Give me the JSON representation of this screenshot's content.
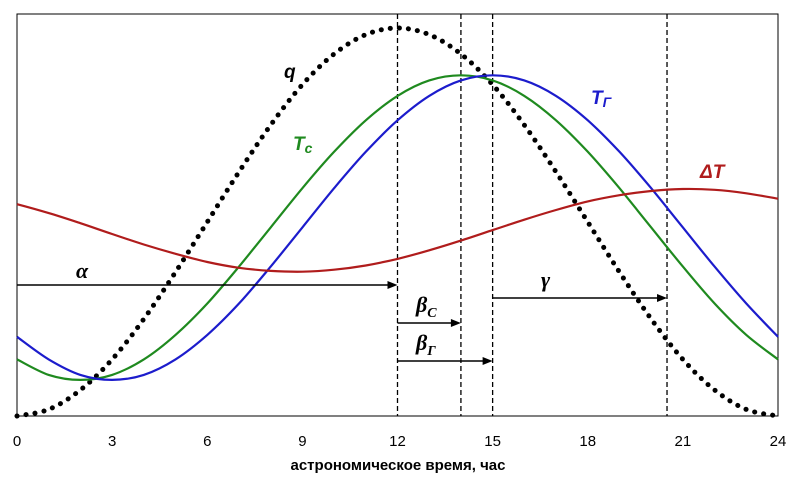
{
  "chart_data": {
    "type": "line",
    "title": "",
    "xlabel": "астрономическое время, час",
    "ylabel": "",
    "xlim": [
      0,
      24
    ],
    "x_ticks": [
      0,
      3,
      6,
      9,
      12,
      15,
      18,
      21,
      24
    ],
    "x_tick_labels": [
      "0",
      "3",
      "6",
      "9",
      "12",
      "15",
      "18",
      "21",
      "24"
    ],
    "y_units": "relative",
    "ylim": [
      0,
      1
    ],
    "grid": false,
    "series": [
      {
        "name": "q",
        "label_text": "q",
        "style": "dotted",
        "color": "#000000",
        "x": [
          0,
          1,
          2,
          3,
          4,
          5,
          6,
          7,
          8,
          9,
          10,
          11,
          12,
          13,
          14,
          15,
          16,
          17,
          18,
          19,
          20,
          21,
          22,
          23,
          24
        ],
        "y": [
          0.0,
          0.017,
          0.067,
          0.146,
          0.25,
          0.371,
          0.5,
          0.629,
          0.75,
          0.854,
          0.933,
          0.983,
          1.0,
          0.983,
          0.933,
          0.854,
          0.75,
          0.629,
          0.5,
          0.371,
          0.25,
          0.146,
          0.067,
          0.017,
          0.0
        ]
      },
      {
        "name": "Tс",
        "label_main": "T",
        "label_sub": "с",
        "style": "solid",
        "color": "#1f8a1f",
        "x": [
          0,
          1,
          2,
          3,
          4,
          5,
          6,
          7,
          8,
          9,
          10,
          11,
          12,
          13,
          14,
          15,
          16,
          17,
          18,
          19,
          20,
          21,
          22,
          23,
          24
        ],
        "y": [
          0.146,
          0.106,
          0.093,
          0.106,
          0.146,
          0.209,
          0.29,
          0.385,
          0.486,
          0.587,
          0.681,
          0.762,
          0.825,
          0.865,
          0.878,
          0.865,
          0.825,
          0.762,
          0.681,
          0.587,
          0.486,
          0.385,
          0.29,
          0.209,
          0.146
        ]
      },
      {
        "name": "TГ",
        "label_main": "T",
        "label_sub": "Г",
        "style": "solid",
        "color": "#1c1ccc",
        "x": [
          0,
          1,
          2,
          3,
          4,
          5,
          6,
          7,
          8,
          9,
          10,
          11,
          12,
          13,
          14,
          15,
          16,
          17,
          18,
          19,
          20,
          21,
          22,
          23,
          24
        ],
        "y": [
          0.204,
          0.146,
          0.106,
          0.093,
          0.106,
          0.146,
          0.209,
          0.29,
          0.385,
          0.486,
          0.587,
          0.681,
          0.762,
          0.825,
          0.865,
          0.878,
          0.865,
          0.825,
          0.762,
          0.681,
          0.587,
          0.486,
          0.385,
          0.29,
          0.204
        ]
      },
      {
        "name": "ΔT",
        "label_main": "ΔT",
        "style": "solid",
        "color": "#b01c1c",
        "x": [
          0,
          1,
          2,
          3,
          4,
          5,
          6,
          7,
          8,
          9,
          10,
          11,
          12,
          13,
          14,
          15,
          16,
          17,
          18,
          19,
          20,
          21,
          22,
          23,
          24
        ],
        "y": [
          0.546,
          0.523,
          0.497,
          0.469,
          0.442,
          0.418,
          0.397,
          0.382,
          0.374,
          0.372,
          0.377,
          0.388,
          0.405,
          0.427,
          0.452,
          0.479,
          0.506,
          0.531,
          0.553,
          0.569,
          0.58,
          0.585,
          0.583,
          0.574,
          0.56
        ]
      }
    ],
    "vertical_lines": [
      12,
      14,
      15,
      20.5
    ],
    "annotations": [
      {
        "symbol": "α",
        "from": 0,
        "to": 12
      },
      {
        "symbol": "β",
        "sub": "C",
        "from": 12,
        "to": 14
      },
      {
        "symbol": "β",
        "sub": "Г",
        "from": 12,
        "to": 15
      },
      {
        "symbol": "γ",
        "from": 15,
        "to": 20.5
      }
    ]
  }
}
